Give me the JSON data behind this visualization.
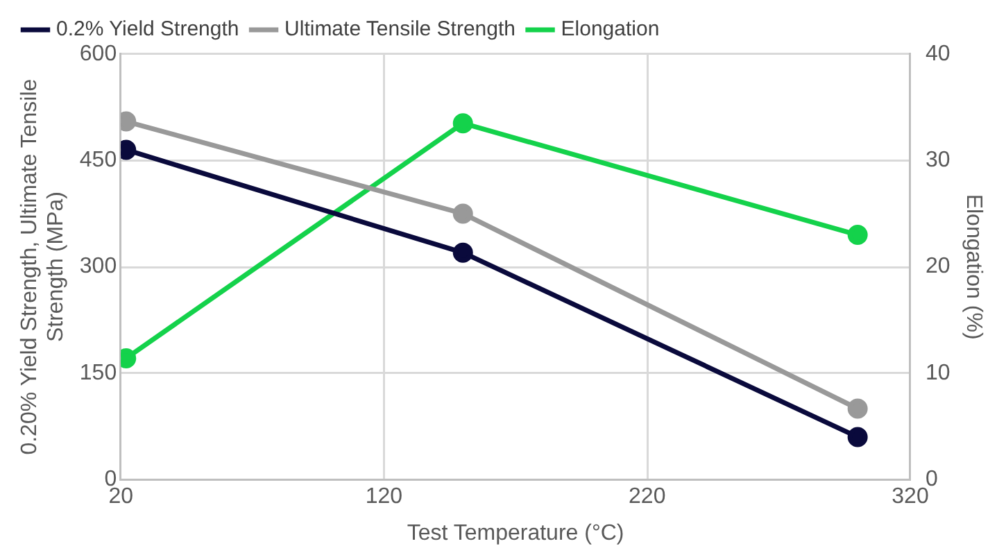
{
  "chart_data": {
    "type": "line",
    "x": [
      22,
      150,
      300
    ],
    "series": [
      {
        "name": "0.2% Yield Strength",
        "color": "#0a0a3c",
        "values": [
          465,
          320,
          60
        ]
      },
      {
        "name": "Ultimate Tensile Strength",
        "color": "#999999",
        "values": [
          505,
          375,
          100
        ]
      },
      {
        "name": "Elongation",
        "color": "#14d24b",
        "values": [
          11.4,
          33.5,
          23
        ],
        "axis": "y2"
      }
    ],
    "xlabel": "Test Temperature (°C)",
    "ylabel": "0.20% Yield Strength, Ultimate Tensile Strength (MPa)",
    "y2label": "Elongation (%)",
    "xlim": [
      20,
      320
    ],
    "xticks": [
      20,
      120,
      220,
      320
    ],
    "ylim": [
      0,
      600
    ],
    "yticks": [
      0,
      150,
      300,
      450,
      600
    ],
    "y2lim": [
      0,
      40
    ],
    "y2ticks": [
      0,
      10,
      20,
      30,
      40
    ],
    "grid": true,
    "legend": "top",
    "marker": "circle",
    "line_style": "solid"
  }
}
